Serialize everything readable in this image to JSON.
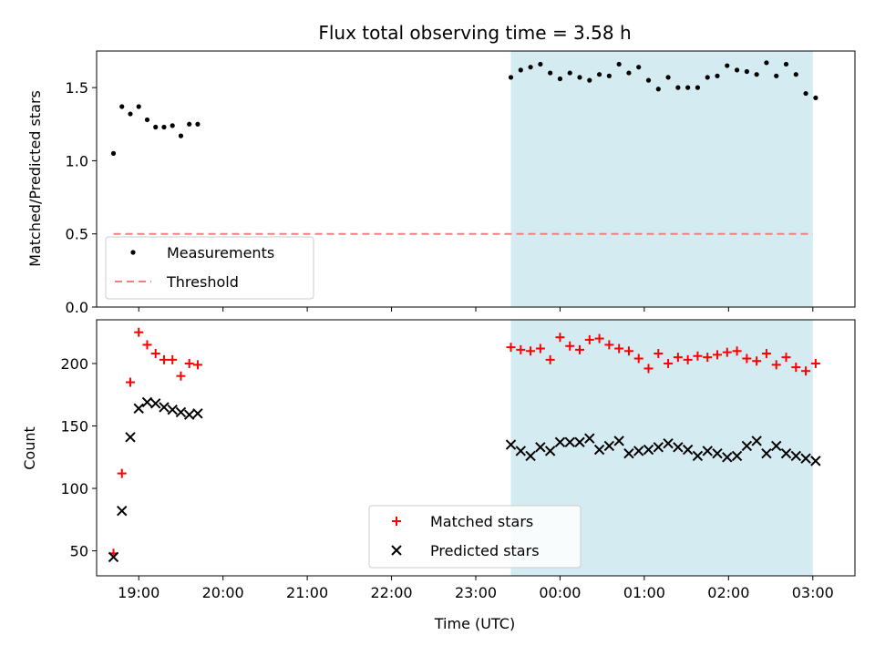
{
  "chart_data": [
    {
      "type": "scatter",
      "title": "Flux total observing time = 3.58 h",
      "xlabel": "",
      "ylabel": "Matched/Predicted stars",
      "xlim": [
        "18:30",
        "03:30"
      ],
      "ylim": [
        0,
        1.75
      ],
      "yticks": [
        0.0,
        0.5,
        1.0,
        1.5
      ],
      "ytick_labels": [
        "0.0",
        "0.5",
        "1.0",
        "1.5"
      ],
      "shaded_span": [
        "23:25",
        "03:00"
      ],
      "shade_color": "#d3ebf1",
      "grid": false,
      "legend_position": "lower-left",
      "series": [
        {
          "name": "Measurements",
          "kind": "points",
          "color": "#000000",
          "x": [
            "18:42",
            "18:48",
            "18:54",
            "19:00",
            "19:06",
            "19:12",
            "19:18",
            "19:24",
            "19:30",
            "19:36",
            "19:42",
            "23:25",
            "23:32",
            "23:39",
            "23:46",
            "23:53",
            "24:00",
            "24:07",
            "24:14",
            "24:21",
            "24:28",
            "24:35",
            "24:42",
            "24:49",
            "24:56",
            "25:03",
            "25:10",
            "25:17",
            "25:24",
            "25:31",
            "25:38",
            "25:45",
            "25:52",
            "25:59",
            "26:06",
            "26:13",
            "26:20",
            "26:27",
            "26:34",
            "26:41",
            "26:48",
            "26:55",
            "27:02"
          ],
          "y": [
            1.05,
            1.37,
            1.32,
            1.37,
            1.28,
            1.23,
            1.23,
            1.24,
            1.17,
            1.25,
            1.25,
            1.57,
            1.62,
            1.64,
            1.66,
            1.6,
            1.56,
            1.6,
            1.57,
            1.55,
            1.59,
            1.58,
            1.66,
            1.6,
            1.64,
            1.55,
            1.49,
            1.57,
            1.5,
            1.5,
            1.5,
            1.57,
            1.58,
            1.65,
            1.62,
            1.61,
            1.59,
            1.67,
            1.58,
            1.66,
            1.59,
            1.46,
            1.43
          ]
        },
        {
          "name": "Threshold",
          "kind": "dashed-line",
          "color": "#f08080",
          "x": [
            "18:42",
            "27:00"
          ],
          "y": [
            0.5,
            0.5
          ]
        }
      ]
    },
    {
      "type": "scatter",
      "title": "",
      "xlabel": "Time (UTC)",
      "ylabel": "Count",
      "xlim": [
        "18:30",
        "03:30"
      ],
      "ylim": [
        30,
        235
      ],
      "yticks": [
        50,
        100,
        150,
        200
      ],
      "ytick_labels": [
        "50",
        "100",
        "150",
        "200"
      ],
      "xticks": [
        "19:00",
        "20:00",
        "21:00",
        "22:00",
        "23:00",
        "00:00",
        "01:00",
        "02:00",
        "03:00"
      ],
      "shaded_span": [
        "23:25",
        "03:00"
      ],
      "shade_color": "#d3ebf1",
      "grid": false,
      "legend_position": "lower-center",
      "series": [
        {
          "name": "Matched stars",
          "kind": "plus",
          "color": "#ff0000",
          "x": [
            "18:42",
            "18:48",
            "18:54",
            "19:00",
            "19:06",
            "19:12",
            "19:18",
            "19:24",
            "19:30",
            "19:36",
            "19:42",
            "23:25",
            "23:32",
            "23:39",
            "23:46",
            "23:53",
            "24:00",
            "24:07",
            "24:14",
            "24:21",
            "24:28",
            "24:35",
            "24:42",
            "24:49",
            "24:56",
            "25:03",
            "25:10",
            "25:17",
            "25:24",
            "25:31",
            "25:38",
            "25:45",
            "25:52",
            "25:59",
            "26:06",
            "26:13",
            "26:20",
            "26:27",
            "26:34",
            "26:41",
            "26:48",
            "26:55",
            "27:02"
          ],
          "y": [
            48,
            112,
            185,
            225,
            215,
            208,
            203,
            203,
            190,
            200,
            199,
            213,
            211,
            210,
            212,
            203,
            221,
            214,
            211,
            219,
            220,
            215,
            212,
            210,
            204,
            196,
            208,
            200,
            205,
            203,
            206,
            205,
            207,
            209,
            210,
            204,
            202,
            208,
            199,
            205,
            197,
            194,
            200
          ]
        },
        {
          "name": "Predicted stars",
          "kind": "x",
          "color": "#000000",
          "x": [
            "18:42",
            "18:48",
            "18:54",
            "19:00",
            "19:06",
            "19:12",
            "19:18",
            "19:24",
            "19:30",
            "19:36",
            "19:42",
            "23:25",
            "23:32",
            "23:39",
            "23:46",
            "23:53",
            "24:00",
            "24:07",
            "24:14",
            "24:21",
            "24:28",
            "24:35",
            "24:42",
            "24:49",
            "24:56",
            "25:03",
            "25:10",
            "25:17",
            "25:24",
            "25:31",
            "25:38",
            "25:45",
            "25:52",
            "25:59",
            "26:06",
            "26:13",
            "26:20",
            "26:27",
            "26:34",
            "26:41",
            "26:48",
            "26:55",
            "27:02"
          ],
          "y": [
            45,
            82,
            141,
            164,
            169,
            168,
            165,
            163,
            161,
            159,
            160,
            135,
            130,
            126,
            133,
            130,
            137,
            137,
            137,
            140,
            131,
            134,
            138,
            128,
            130,
            131,
            133,
            136,
            133,
            131,
            126,
            130,
            128,
            125,
            126,
            134,
            138,
            128,
            134,
            128,
            126,
            124,
            122
          ]
        }
      ]
    }
  ]
}
